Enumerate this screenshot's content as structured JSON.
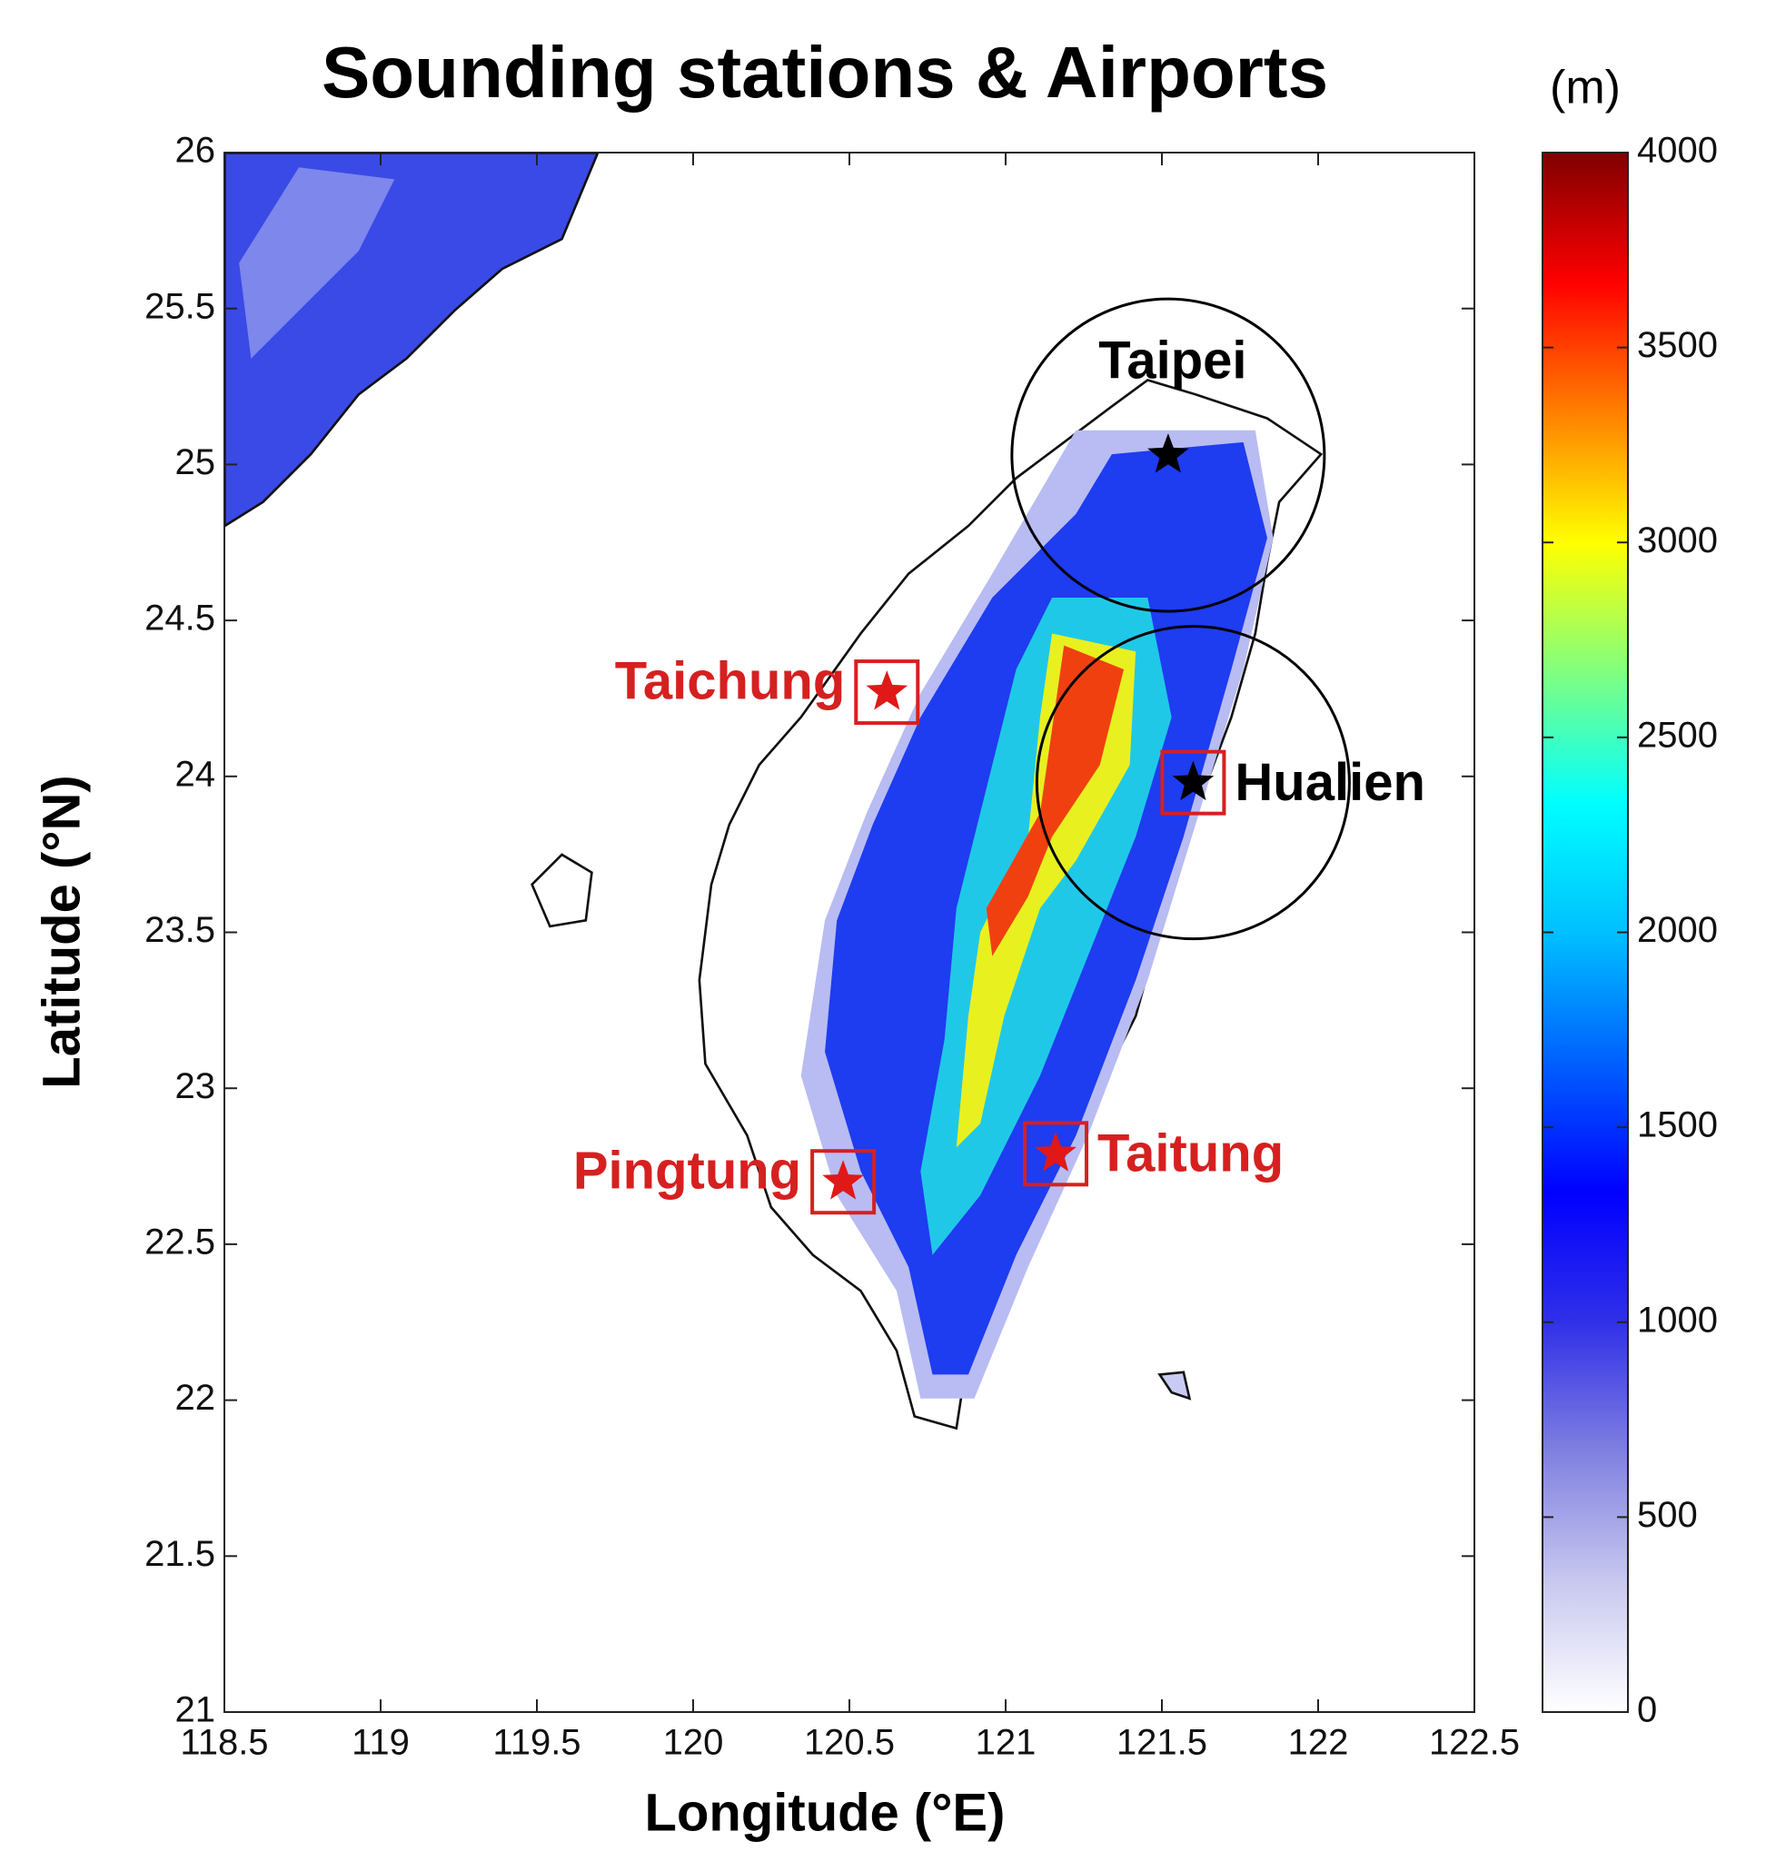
{
  "chart_data": {
    "type": "map",
    "title": "Sounding stations & Airports",
    "xlabel": "Longitude (°E)",
    "ylabel": "Latitude (°N)",
    "xlim": [
      118.5,
      122.5
    ],
    "ylim": [
      21,
      26
    ],
    "xticks": [
      118.5,
      119,
      119.5,
      120,
      120.5,
      121,
      121.5,
      122,
      122.5
    ],
    "yticks": [
      21,
      21.5,
      22,
      22.5,
      23,
      23.5,
      24,
      24.5,
      25,
      25.5,
      26
    ],
    "colorbar": {
      "label": "(m)",
      "lim": [
        0,
        4000
      ],
      "ticks": [
        0,
        500,
        1000,
        1500,
        2000,
        2500,
        3000,
        3500,
        4000
      ],
      "colormap": [
        "#ffffff",
        "#c8c8f0",
        "#8080e0",
        "#3030e8",
        "#0000ff",
        "#0060ff",
        "#00c0ff",
        "#00ffff",
        "#80ff80",
        "#ffff00",
        "#ff8000",
        "#ff0000",
        "#800000"
      ]
    },
    "stations": [
      {
        "name": "Taipei",
        "lon": 121.52,
        "lat": 25.03,
        "sounding": true,
        "airport": false,
        "label_position": "above"
      },
      {
        "name": "Hualien",
        "lon": 121.6,
        "lat": 23.98,
        "sounding": true,
        "airport": true,
        "label_position": "right"
      },
      {
        "name": "Taichung",
        "lon": 120.62,
        "lat": 24.27,
        "sounding": false,
        "airport": true,
        "label_position": "left"
      },
      {
        "name": "Pingtung",
        "lon": 120.48,
        "lat": 22.7,
        "sounding": false,
        "airport": true,
        "label_position": "left"
      },
      {
        "name": "Taitung",
        "lon": 121.16,
        "lat": 22.79,
        "sounding": false,
        "airport": true,
        "label_position": "right"
      }
    ]
  }
}
